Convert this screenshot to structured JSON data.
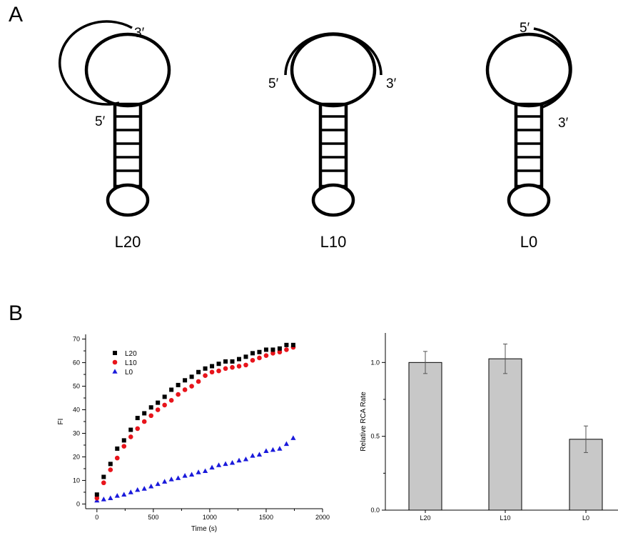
{
  "panel_a": {
    "letter": "A",
    "hairpins": [
      {
        "name": "L20",
        "label_5": "5′",
        "label_3": "3′"
      },
      {
        "name": "L10",
        "label_5": "5′",
        "label_3": "3′"
      },
      {
        "name": "L0",
        "label_5": "5′",
        "label_3": "3′"
      }
    ]
  },
  "panel_b": {
    "letter": "B"
  },
  "chart_data": [
    {
      "type": "scatter",
      "xlabel": "Time (s)",
      "ylabel": "FI",
      "xlim": [
        -100,
        2000
      ],
      "ylim": [
        -2,
        72
      ],
      "xticks": [
        0,
        500,
        1000,
        1500,
        2000
      ],
      "yticks": [
        0,
        10,
        20,
        30,
        40,
        50,
        60,
        70
      ],
      "legend_position": "top-left",
      "series": [
        {
          "name": "L20",
          "marker": "square",
          "color": "#000000",
          "x": [
            0,
            60,
            120,
            180,
            240,
            300,
            360,
            420,
            480,
            540,
            600,
            660,
            720,
            780,
            840,
            900,
            960,
            1020,
            1080,
            1140,
            1200,
            1260,
            1320,
            1380,
            1440,
            1500,
            1560,
            1620,
            1680,
            1740
          ],
          "y": [
            4,
            11.5,
            17,
            23.5,
            27,
            31.5,
            36.5,
            38.5,
            41,
            43,
            45.5,
            48.5,
            50.5,
            52.5,
            54,
            56,
            57.5,
            58.5,
            59.5,
            60.5,
            60.5,
            61.5,
            62.5,
            64,
            64.5,
            65.5,
            65.5,
            66,
            67.5,
            67.5
          ]
        },
        {
          "name": "L10",
          "marker": "circle",
          "color": "#e8141b",
          "x": [
            0,
            60,
            120,
            180,
            240,
            300,
            360,
            420,
            480,
            540,
            600,
            660,
            720,
            780,
            840,
            900,
            960,
            1020,
            1080,
            1140,
            1200,
            1260,
            1320,
            1380,
            1440,
            1500,
            1560,
            1620,
            1680,
            1740
          ],
          "y": [
            2.5,
            9,
            14.5,
            19.5,
            24.5,
            28.5,
            32,
            35,
            37.5,
            40,
            42,
            44,
            46.5,
            48.5,
            50,
            52,
            54.5,
            56,
            56.5,
            57.5,
            58,
            58.5,
            59,
            61,
            62,
            63,
            64,
            64.5,
            65.5,
            66.5
          ]
        },
        {
          "name": "L0",
          "marker": "triangle",
          "color": "#1a1adb",
          "x": [
            0,
            60,
            120,
            180,
            240,
            300,
            360,
            420,
            480,
            540,
            600,
            660,
            720,
            780,
            840,
            900,
            960,
            1020,
            1080,
            1140,
            1200,
            1260,
            1320,
            1380,
            1440,
            1500,
            1560,
            1620,
            1680,
            1740
          ],
          "y": [
            1.5,
            2,
            2.5,
            3.5,
            4,
            5,
            6,
            6.5,
            7.5,
            8.5,
            9.5,
            10.5,
            11,
            12,
            12.5,
            13.5,
            14,
            15.5,
            16.5,
            17,
            17.5,
            18.5,
            19,
            20.5,
            21,
            22.5,
            23,
            23.5,
            25.5,
            28
          ]
        }
      ]
    },
    {
      "type": "bar",
      "ylabel": "Relative RCA Rate",
      "categories": [
        "L20",
        "L10",
        "L0"
      ],
      "values": [
        1.0,
        1.025,
        0.48
      ],
      "errors": [
        0.075,
        0.1,
        0.09
      ],
      "ylim": [
        0,
        1.2
      ],
      "yticks": [
        "0.0",
        "0.5",
        "1.0"
      ],
      "bar_color": "#c8c8c8"
    }
  ]
}
